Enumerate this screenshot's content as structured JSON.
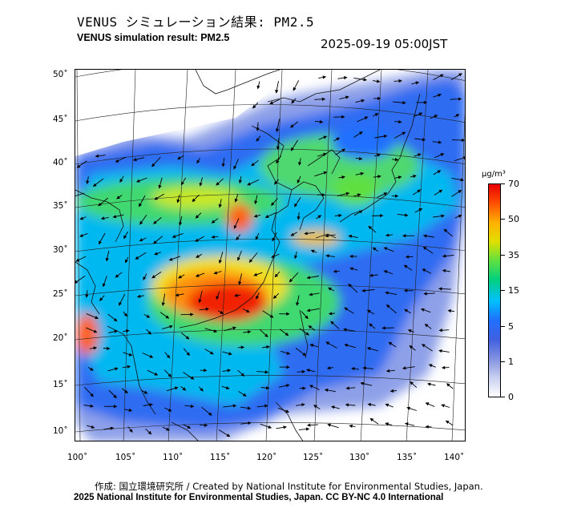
{
  "title_jp": "VENUS シミュレーション結果: PM2.5",
  "title_en": "VENUS simulation result: PM2.5",
  "timestamp": "2025-09-19 05:00JST",
  "lat_labels": [
    "50˚",
    "45˚",
    "40˚",
    "35˚",
    "30˚",
    "25˚",
    "20˚",
    "15˚",
    "10˚"
  ],
  "lon_labels": [
    "100˚",
    "105˚",
    "110˚",
    "115˚",
    "120˚",
    "125˚",
    "130˚",
    "135˚",
    "140˚"
  ],
  "colorbar": {
    "unit": "µg/m³",
    "labels": [
      "70",
      "50",
      "35",
      "15",
      "5",
      "1",
      "0"
    ],
    "stops": [
      "#e80000",
      "#ff5000",
      "#ffb000",
      "#e0e000",
      "#60e040",
      "#00d080",
      "#00c0ff",
      "#2070ff",
      "#4060e0",
      "#8090e0",
      "#c8d0f0",
      "#ffffff"
    ]
  },
  "credit_line1": "作成: 国立環境研究所 / Created by National Institute for Environmental Studies, Japan.",
  "credit_line2": "2025 National Institute for Environmental Studies, Japan. CC BY-NC 4.0 International"
}
